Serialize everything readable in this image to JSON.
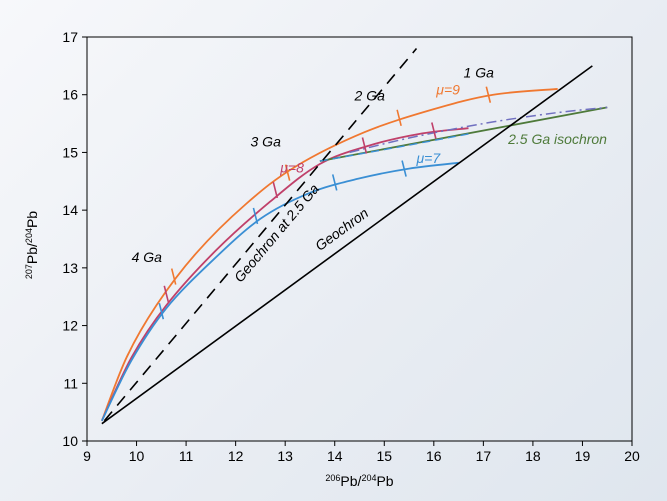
{
  "chart_data": {
    "type": "line",
    "title": "",
    "xlabel": {
      "sup": "206",
      "base": "Pb/",
      "sup2": "204",
      "base2": "Pb"
    },
    "ylabel": {
      "sup": "207",
      "base": "Pb/",
      "sup2": "204",
      "base2": "Pb"
    },
    "xlim": [
      9,
      20
    ],
    "ylim": [
      10,
      17
    ],
    "xticks": [
      9,
      10,
      11,
      12,
      13,
      14,
      15,
      16,
      17,
      18,
      19,
      20
    ],
    "yticks": [
      10,
      11,
      12,
      13,
      14,
      15,
      16,
      17
    ],
    "grid": false,
    "colors": {
      "mu9": "#f07830",
      "mu8": "#c0406a",
      "mu7": "#3a8fd4",
      "isochron": "#4e7a3a",
      "dashdot": "#7070c0",
      "geochron": "#000000"
    },
    "series": [
      {
        "name": "μ=9",
        "style": "solid",
        "points": [
          [
            9.3,
            10.35
          ],
          [
            9.8,
            11.45
          ],
          [
            10.4,
            12.35
          ],
          [
            11.2,
            13.25
          ],
          [
            12.2,
            14.1
          ],
          [
            13.2,
            14.75
          ],
          [
            14.6,
            15.35
          ],
          [
            16.0,
            15.75
          ],
          [
            17.2,
            16.0
          ],
          [
            18.5,
            16.1
          ]
        ]
      },
      {
        "name": "μ=8",
        "style": "solid",
        "points": [
          [
            9.3,
            10.35
          ],
          [
            9.9,
            11.45
          ],
          [
            10.6,
            12.35
          ],
          [
            11.6,
            13.3
          ],
          [
            12.7,
            14.15
          ],
          [
            13.7,
            14.8
          ],
          [
            14.7,
            15.12
          ],
          [
            15.7,
            15.32
          ],
          [
            16.7,
            15.42
          ]
        ]
      },
      {
        "name": "μ=7",
        "style": "solid",
        "points": [
          [
            9.3,
            10.35
          ],
          [
            9.9,
            11.4
          ],
          [
            10.6,
            12.3
          ],
          [
            11.5,
            13.1
          ],
          [
            12.5,
            13.85
          ],
          [
            13.5,
            14.3
          ],
          [
            14.5,
            14.55
          ],
          [
            15.5,
            14.72
          ],
          [
            16.5,
            14.82
          ]
        ]
      },
      {
        "name": "2.5 Ga isochron",
        "style": "solid",
        "points": [
          [
            13.7,
            14.85
          ],
          [
            19.5,
            15.78
          ]
        ]
      },
      {
        "name": "",
        "style": "dashdot",
        "points": [
          [
            14.3,
            15.0
          ],
          [
            15.5,
            15.25
          ],
          [
            17.0,
            15.5
          ],
          [
            18.4,
            15.68
          ],
          [
            19.5,
            15.78
          ]
        ]
      },
      {
        "name": "",
        "style": "dashed-blue",
        "points": [
          [
            13.7,
            14.85
          ],
          [
            15.2,
            15.08
          ],
          [
            16.7,
            15.32
          ]
        ]
      },
      {
        "name": "Geochron at 2.5 Ga",
        "style": "dashed",
        "points": [
          [
            9.35,
            10.35
          ],
          [
            15.65,
            16.8
          ]
        ]
      },
      {
        "name": "Geochron",
        "style": "solid",
        "points": [
          [
            9.3,
            10.3
          ],
          [
            19.2,
            16.5
          ]
        ]
      }
    ],
    "age_ticks": [
      {
        "series": "μ=9",
        "points": [
          [
            10.75,
            12.85
          ],
          [
            13.05,
            14.65
          ],
          [
            15.3,
            15.6
          ],
          [
            17.1,
            16.0
          ]
        ]
      },
      {
        "series": "μ=8",
        "points": [
          [
            10.6,
            12.55
          ],
          [
            12.8,
            14.35
          ],
          [
            14.6,
            15.12
          ],
          [
            16.0,
            15.38
          ]
        ]
      },
      {
        "series": "μ=7",
        "points": [
          [
            10.5,
            12.25
          ],
          [
            12.4,
            13.9
          ],
          [
            14.0,
            14.48
          ],
          [
            15.4,
            14.72
          ]
        ]
      }
    ],
    "annotations": [
      {
        "text": "4 Ga",
        "x": 9.9,
        "y": 13.1,
        "color": "#000000"
      },
      {
        "text": "3 Ga",
        "x": 12.3,
        "y": 15.1,
        "color": "#000000"
      },
      {
        "text": "2 Ga",
        "x": 14.4,
        "y": 15.9,
        "color": "#000000"
      },
      {
        "text": "1 Ga",
        "x": 16.6,
        "y": 16.3,
        "color": "#000000"
      },
      {
        "text": "μ=9",
        "x": 16.05,
        "y": 16.0,
        "color": "#f07830"
      },
      {
        "text": "μ=8",
        "x": 12.9,
        "y": 14.65,
        "color": "#c0406a"
      },
      {
        "text": "μ=7",
        "x": 15.65,
        "y": 14.82,
        "color": "#3a8fd4"
      },
      {
        "text": "2.5 Ga isochron",
        "x": 17.5,
        "y": 15.15,
        "color": "#4e7a3a"
      }
    ],
    "rotated_annotations": [
      {
        "text": "Geochron at 2.5 Ga",
        "x": 12.9,
        "y": 13.55,
        "angle_from": [
          9.35,
          10.35
        ],
        "angle_to": [
          15.65,
          16.8
        ],
        "color": "#000000"
      },
      {
        "text": "Geochron",
        "x": 14.2,
        "y": 13.6,
        "angle_from": [
          9.3,
          10.3
        ],
        "angle_to": [
          19.2,
          16.5
        ],
        "color": "#000000"
      }
    ]
  }
}
